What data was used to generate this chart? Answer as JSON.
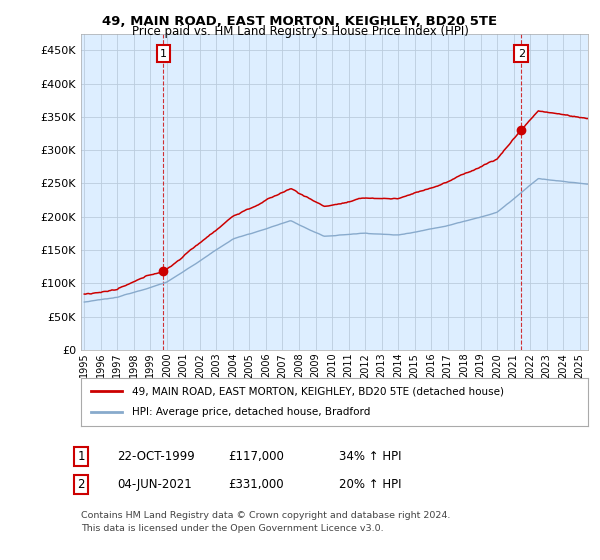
{
  "title1": "49, MAIN ROAD, EAST MORTON, KEIGHLEY, BD20 5TE",
  "title2": "Price paid vs. HM Land Registry's House Price Index (HPI)",
  "legend_label1": "49, MAIN ROAD, EAST MORTON, KEIGHLEY, BD20 5TE (detached house)",
  "legend_label2": "HPI: Average price, detached house, Bradford",
  "point1_date": "22-OCT-1999",
  "point1_price": "£117,000",
  "point1_hpi": "34% ↑ HPI",
  "point2_date": "04-JUN-2021",
  "point2_price": "£331,000",
  "point2_hpi": "20% ↑ HPI",
  "footnote1": "Contains HM Land Registry data © Crown copyright and database right 2024.",
  "footnote2": "This data is licensed under the Open Government Licence v3.0.",
  "red_color": "#cc0000",
  "blue_color": "#88aacc",
  "bg_color": "#ffffff",
  "plot_bg_color": "#ddeeff",
  "grid_color": "#bbccdd",
  "ylim": [
    0,
    475000
  ],
  "yticks": [
    0,
    50000,
    100000,
    150000,
    200000,
    250000,
    300000,
    350000,
    400000,
    450000
  ],
  "start_year": 1995.0,
  "end_year": 2025.5,
  "sale1_t": 1999.79,
  "sale1_val": 117000,
  "sale2_t": 2021.46,
  "sale2_val": 331000
}
